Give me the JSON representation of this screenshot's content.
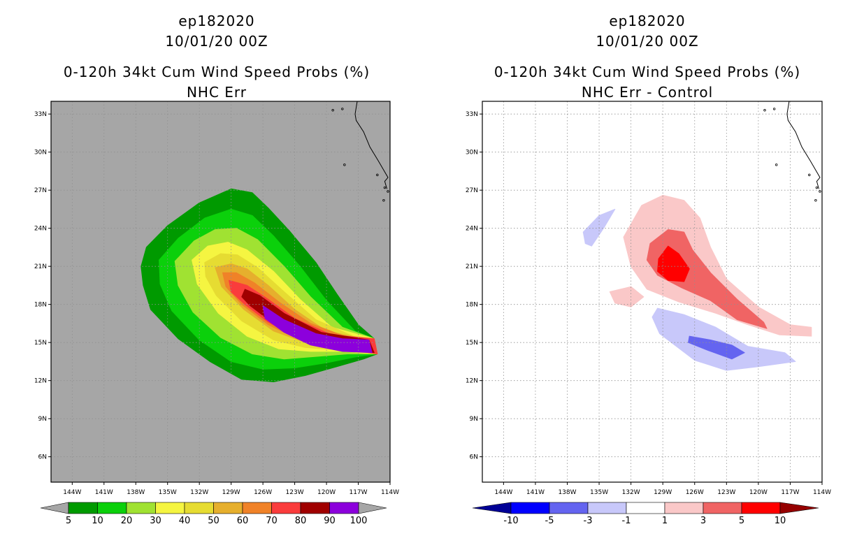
{
  "chart_data": [
    {
      "type": "heatmap",
      "title_lines": [
        "ep182020",
        "10/01/20 00Z",
        "0-120h 34kt Cum Wind Speed Probs (%)",
        "NHC Err"
      ],
      "x_ticks": [
        "144W",
        "141W",
        "138W",
        "135W",
        "132W",
        "129W",
        "126W",
        "123W",
        "120W",
        "117W",
        "114W"
      ],
      "y_ticks": [
        "33N",
        "30N",
        "27N",
        "24N",
        "21N",
        "18N",
        "15N",
        "12N",
        "9N",
        "6N"
      ],
      "x_range": [
        -146,
        -114
      ],
      "y_range": [
        4,
        34
      ],
      "background_color": "#a6a6a6",
      "colorbar": {
        "labels": [
          "5",
          "10",
          "20",
          "30",
          "40",
          "50",
          "60",
          "70",
          "80",
          "90",
          "100"
        ],
        "colors": [
          "#009a00",
          "#0bd00b",
          "#a0e232",
          "#f5f541",
          "#e6dc32",
          "#e6af2d",
          "#f08228",
          "#fa3c3c",
          "#a00000",
          "#8c00dc"
        ],
        "extend_low_color": "#a6a6a6",
        "extend_high_color": "#a6a6a6"
      },
      "contours": [
        {
          "level": 5,
          "color": "#009a00",
          "points": [
            [
              -137,
              22.5
            ],
            [
              -135,
              24.2
            ],
            [
              -132,
              26
            ],
            [
              -129,
              27.1
            ],
            [
              -127,
              26.8
            ],
            [
              -125.5,
              25.6
            ],
            [
              -123.5,
              23.8
            ],
            [
              -121,
              21.3
            ],
            [
              -119,
              18.8
            ],
            [
              -117,
              16.4
            ],
            [
              -115.5,
              15.3
            ],
            [
              -115.2,
              14.1
            ],
            [
              -116.5,
              13.7
            ],
            [
              -119,
              13.1
            ],
            [
              -122,
              12.4
            ],
            [
              -125,
              11.9
            ],
            [
              -128,
              12.1
            ],
            [
              -131,
              13.5
            ],
            [
              -134,
              15.3
            ],
            [
              -136.6,
              17.6
            ],
            [
              -137.3,
              19.5
            ],
            [
              -137.5,
              21
            ]
          ]
        },
        {
          "level": 10,
          "color": "#0bd00b",
          "points": [
            [
              -135.8,
              21.5
            ],
            [
              -134,
              23.2
            ],
            [
              -131.5,
              24.8
            ],
            [
              -129,
              25.5
            ],
            [
              -127,
              25
            ],
            [
              -125,
              23.4
            ],
            [
              -122.5,
              21
            ],
            [
              -120,
              18.3
            ],
            [
              -117.3,
              15.9
            ],
            [
              -115.5,
              15.3
            ],
            [
              -115.2,
              14.1
            ],
            [
              -117,
              13.9
            ],
            [
              -120,
              13.4
            ],
            [
              -123,
              13
            ],
            [
              -126,
              12.9
            ],
            [
              -129,
              13.5
            ],
            [
              -132,
              15.2
            ],
            [
              -134.6,
              17.5
            ],
            [
              -135.7,
              19.6
            ]
          ]
        },
        {
          "level": 20,
          "color": "#a0e232",
          "points": [
            [
              -134.3,
              21.4
            ],
            [
              -132.5,
              23
            ],
            [
              -130.5,
              23.9
            ],
            [
              -128.5,
              24
            ],
            [
              -126.5,
              23.1
            ],
            [
              -124,
              21
            ],
            [
              -121.5,
              18.6
            ],
            [
              -118.5,
              16.2
            ],
            [
              -115.5,
              15.3
            ],
            [
              -115.2,
              14.1
            ],
            [
              -118,
              14.1
            ],
            [
              -121,
              13.9
            ],
            [
              -124,
              13.7
            ],
            [
              -127,
              14.1
            ],
            [
              -130,
              15.4
            ],
            [
              -132.6,
              17.4
            ],
            [
              -134,
              19.5
            ]
          ]
        },
        {
          "level": 30,
          "color": "#f5f541",
          "points": [
            [
              -132.7,
              21.5
            ],
            [
              -131.2,
              22.6
            ],
            [
              -129.3,
              22.9
            ],
            [
              -127.5,
              22.3
            ],
            [
              -125,
              20.6
            ],
            [
              -122.5,
              18.4
            ],
            [
              -119.5,
              16.2
            ],
            [
              -115.5,
              15.3
            ],
            [
              -115.2,
              14.1
            ],
            [
              -118.5,
              14.3
            ],
            [
              -121.5,
              14.3
            ],
            [
              -124.5,
              14.5
            ],
            [
              -127.5,
              15.5
            ],
            [
              -130.2,
              17.3
            ],
            [
              -132.2,
              19.6
            ]
          ]
        },
        {
          "level": 40,
          "color": "#e6dc32",
          "points": [
            [
              -131.5,
              21.3
            ],
            [
              -130,
              22
            ],
            [
              -128.4,
              21.9
            ],
            [
              -126.5,
              20.9
            ],
            [
              -124,
              19
            ],
            [
              -121,
              16.8
            ],
            [
              -117.5,
              15.5
            ],
            [
              -115.5,
              15.3
            ],
            [
              -115.2,
              14.1
            ],
            [
              -118.5,
              14.4
            ],
            [
              -122,
              14.6
            ],
            [
              -125,
              15.2
            ],
            [
              -128,
              16.7
            ],
            [
              -130.4,
              18.7
            ],
            [
              -131.4,
              20.2
            ]
          ]
        },
        {
          "level": 50,
          "color": "#e6af2d",
          "points": [
            [
              -130.5,
              20.9
            ],
            [
              -129,
              21.2
            ],
            [
              -127.5,
              20.8
            ],
            [
              -125.5,
              19.5
            ],
            [
              -123,
              17.6
            ],
            [
              -120,
              15.9
            ],
            [
              -117,
              15.4
            ],
            [
              -115.5,
              15.3
            ],
            [
              -115.2,
              14.1
            ],
            [
              -118.5,
              14.5
            ],
            [
              -122,
              15
            ],
            [
              -125,
              15.9
            ],
            [
              -127.8,
              17.6
            ],
            [
              -129.9,
              19.4
            ]
          ]
        },
        {
          "level": 60,
          "color": "#f08228",
          "points": [
            [
              -129.8,
              20.5
            ],
            [
              -128.5,
              20.5
            ],
            [
              -126.8,
              19.7
            ],
            [
              -124.5,
              18.2
            ],
            [
              -121.5,
              16.5
            ],
            [
              -118,
              15.4
            ],
            [
              -115.5,
              15.3
            ],
            [
              -115.2,
              14.1
            ],
            [
              -118.5,
              14.5
            ],
            [
              -122.5,
              15.2
            ],
            [
              -125.5,
              16.4
            ],
            [
              -128,
              18
            ],
            [
              -129.5,
              19.4
            ]
          ]
        },
        {
          "level": 70,
          "color": "#fa3c3c",
          "points": [
            [
              -129.2,
              19.9
            ],
            [
              -127.5,
              19.5
            ],
            [
              -125.5,
              18.4
            ],
            [
              -123,
              16.9
            ],
            [
              -119.5,
              15.6
            ],
            [
              -115.5,
              15.3
            ],
            [
              -115.2,
              14.1
            ],
            [
              -118.5,
              14.5
            ],
            [
              -122.5,
              15.3
            ],
            [
              -125.5,
              16.6
            ],
            [
              -127.7,
              18
            ],
            [
              -129,
              19
            ]
          ]
        },
        {
          "level": 80,
          "color": "#a00000",
          "points": [
            [
              -127.7,
              19.2
            ],
            [
              -126.3,
              18.7
            ],
            [
              -124,
              17.3
            ],
            [
              -120.5,
              15.8
            ],
            [
              -116,
              15.2
            ],
            [
              -115.5,
              14.2
            ],
            [
              -118.5,
              14.4
            ],
            [
              -122,
              15.1
            ],
            [
              -125,
              16.5
            ],
            [
              -127.2,
              17.9
            ],
            [
              -128,
              18.6
            ]
          ]
        },
        {
          "level": 90,
          "color": "#8c00dc",
          "points": [
            [
              -126,
              17.9
            ],
            [
              -124,
              16.8
            ],
            [
              -121,
              15.7
            ],
            [
              -118.5,
              15.3
            ],
            [
              -116,
              15.2
            ],
            [
              -115.7,
              14.2
            ],
            [
              -118.5,
              14.3
            ],
            [
              -121.5,
              14.8
            ],
            [
              -124,
              15.8
            ],
            [
              -125.8,
              16.9
            ]
          ]
        }
      ]
    },
    {
      "type": "heatmap",
      "title_lines": [
        "ep182020",
        "10/01/20 00Z",
        "0-120h 34kt Cum Wind Speed Probs (%)",
        "NHC Err - Control"
      ],
      "x_ticks": [
        "144W",
        "141W",
        "138W",
        "135W",
        "132W",
        "129W",
        "126W",
        "123W",
        "120W",
        "117W",
        "114W"
      ],
      "y_ticks": [
        "33N",
        "30N",
        "27N",
        "24N",
        "21N",
        "18N",
        "15N",
        "12N",
        "9N",
        "6N"
      ],
      "x_range": [
        -146,
        -114
      ],
      "y_range": [
        4,
        34
      ],
      "background_color": "#ffffff",
      "colorbar": {
        "labels": [
          "-10",
          "-5",
          "-3",
          "-1",
          "1",
          "3",
          "5",
          "10"
        ],
        "colors": [
          "#0000ff",
          "#6464f0",
          "#c8c8fa",
          "#ffffff",
          "#fac8c8",
          "#f06464",
          "#ff0000"
        ],
        "extend_low_color": "#000096",
        "extend_high_color": "#960000"
      },
      "contours": [
        {
          "level": 1,
          "color": "#fac8c8",
          "points": [
            [
              -131,
              25.8
            ],
            [
              -129,
              26.6
            ],
            [
              -127,
              26.2
            ],
            [
              -125.5,
              24.8
            ],
            [
              -124.5,
              22.5
            ],
            [
              -123,
              20
            ],
            [
              -120,
              17.8
            ],
            [
              -117,
              16.4
            ],
            [
              -115,
              16.2
            ],
            [
              -115,
              15.5
            ],
            [
              -118,
              15.6
            ],
            [
              -121,
              16.4
            ],
            [
              -124,
              17.3
            ],
            [
              -127.5,
              18.2
            ],
            [
              -130.5,
              19.2
            ],
            [
              -132,
              21
            ],
            [
              -132.7,
              23.3
            ]
          ]
        },
        {
          "level": 1,
          "color": "#fac8c8",
          "points": [
            [
              -134,
              19
            ],
            [
              -132,
              19.4
            ],
            [
              -130.8,
              18.6
            ],
            [
              -132,
              17.8
            ],
            [
              -133.5,
              18.1
            ]
          ]
        },
        {
          "level": -1,
          "color": "#c8c8fa",
          "points": [
            [
              -136.5,
              23.7
            ],
            [
              -135,
              25
            ],
            [
              -133.5,
              25.5
            ],
            [
              -134.5,
              24.1
            ],
            [
              -135.7,
              22.6
            ],
            [
              -136.3,
              22.8
            ]
          ]
        },
        {
          "level": -1,
          "color": "#c8c8fa",
          "points": [
            [
              -129.5,
              17.7
            ],
            [
              -127,
              17.2
            ],
            [
              -124,
              16.2
            ],
            [
              -121,
              14.7
            ],
            [
              -117.5,
              14.2
            ],
            [
              -116.5,
              13.5
            ],
            [
              -120,
              13.1
            ],
            [
              -123,
              12.8
            ],
            [
              -126,
              13.6
            ],
            [
              -129.3,
              15.7
            ],
            [
              -130,
              17
            ]
          ]
        },
        {
          "level": 3,
          "color": "#f06464",
          "points": [
            [
              -130.2,
              22.8
            ],
            [
              -128.5,
              23.9
            ],
            [
              -127,
              23.7
            ],
            [
              -126.2,
              22.3
            ],
            [
              -124.5,
              20.5
            ],
            [
              -122,
              18.4
            ],
            [
              -119.5,
              16.6
            ],
            [
              -119.2,
              16.1
            ],
            [
              -122,
              16.8
            ],
            [
              -124.5,
              18.3
            ],
            [
              -127.2,
              19.3
            ],
            [
              -129.5,
              20.3
            ],
            [
              -130.5,
              21.5
            ]
          ]
        },
        {
          "level": 5,
          "color": "#ff0000",
          "points": [
            [
              -129.4,
              21.6
            ],
            [
              -128.5,
              22.6
            ],
            [
              -127.5,
              22
            ],
            [
              -126.5,
              20.8
            ],
            [
              -127,
              19.8
            ],
            [
              -128.5,
              19.9
            ],
            [
              -129.5,
              20.6
            ]
          ]
        },
        {
          "level": -3,
          "color": "#6464f0",
          "points": [
            [
              -126.5,
              15.5
            ],
            [
              -124.5,
              15.2
            ],
            [
              -122.5,
              14.8
            ],
            [
              -121.3,
              14.2
            ],
            [
              -122.5,
              13.7
            ],
            [
              -124.8,
              14.4
            ],
            [
              -126.6,
              15
            ]
          ]
        }
      ]
    }
  ]
}
